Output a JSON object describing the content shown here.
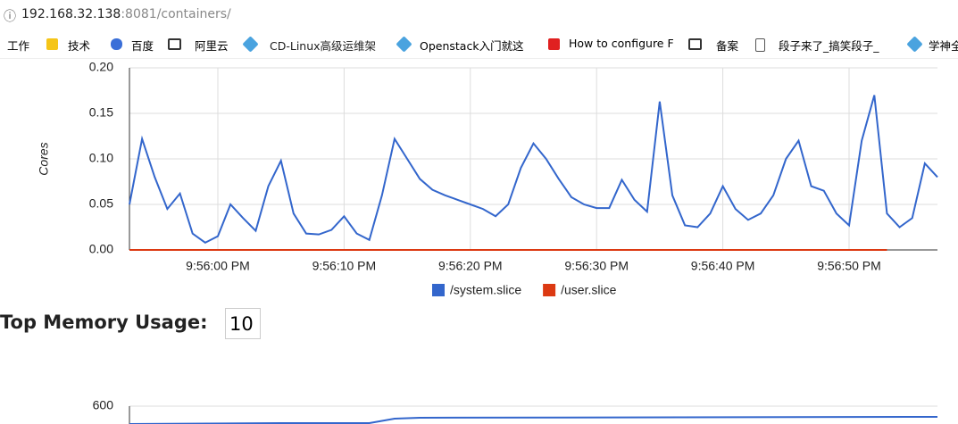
{
  "browser": {
    "url_host": "192.168.32.138",
    "url_rest": ":8081/containers/",
    "bookmarks": [
      "工作",
      "技术",
      "百度",
      "阿里云",
      "CD-Linux高级运维架",
      "Openstack入门就这",
      "How to configure F",
      "备案",
      "段子来了_搞笑段子_",
      "学神全"
    ]
  },
  "chart_data": [
    {
      "type": "line",
      "y_label": "Cores",
      "x": [
        "9:55:53 PM",
        "9:55:54 PM",
        "9:55:55 PM",
        "9:55:56 PM",
        "9:55:57 PM",
        "9:55:58 PM",
        "9:55:59 PM",
        "9:56:00 PM",
        "9:56:01 PM",
        "9:56:02 PM",
        "9:56:03 PM",
        "9:56:04 PM",
        "9:56:05 PM",
        "9:56:06 PM",
        "9:56:07 PM",
        "9:56:08 PM",
        "9:56:09 PM",
        "9:56:10 PM",
        "9:56:11 PM",
        "9:56:12 PM",
        "9:56:13 PM",
        "9:56:14 PM",
        "9:56:15 PM",
        "9:56:16 PM",
        "9:56:17 PM",
        "9:56:18 PM",
        "9:56:19 PM",
        "9:56:20 PM",
        "9:56:21 PM",
        "9:56:22 PM",
        "9:56:23 PM",
        "9:56:24 PM",
        "9:56:25 PM",
        "9:56:26 PM",
        "9:56:27 PM",
        "9:56:28 PM",
        "9:56:29 PM",
        "9:56:30 PM",
        "9:56:31 PM",
        "9:56:32 PM",
        "9:56:33 PM",
        "9:56:34 PM",
        "9:56:35 PM",
        "9:56:36 PM",
        "9:56:37 PM",
        "9:56:38 PM",
        "9:56:39 PM",
        "9:56:40 PM",
        "9:56:41 PM",
        "9:56:42 PM",
        "9:56:43 PM",
        "9:56:44 PM",
        "9:56:45 PM",
        "9:56:46 PM",
        "9:56:47 PM",
        "9:56:48 PM",
        "9:56:49 PM",
        "9:56:50 PM",
        "9:56:51 PM",
        "9:56:52 PM",
        "9:56:53 PM",
        "9:56:54 PM",
        "9:56:55 PM",
        "9:56:56 PM",
        "9:56:57 PM"
      ],
      "series": [
        {
          "name": "/system.slice",
          "color": "#3366cc",
          "values": [
            0.05,
            0.122,
            0.08,
            0.045,
            0.062,
            0.018,
            0.008,
            0.015,
            0.05,
            0.035,
            0.021,
            0.07,
            0.098,
            0.04,
            0.018,
            0.017,
            0.022,
            0.037,
            0.018,
            0.011,
            0.06,
            0.122,
            0.1,
            0.078,
            0.066,
            0.06,
            0.055,
            0.05,
            0.045,
            0.037,
            0.05,
            0.09,
            0.117,
            0.1,
            0.078,
            0.058,
            0.05,
            0.046,
            0.046,
            0.077,
            0.055,
            0.042,
            0.163,
            0.06,
            0.027,
            0.025,
            0.04,
            0.07,
            0.045,
            0.033,
            0.04,
            0.06,
            0.1,
            0.12,
            0.07,
            0.065,
            0.04,
            0.027,
            0.12,
            0.17,
            0.04,
            0.025,
            0.035,
            0.095,
            0.08
          ]
        },
        {
          "name": "/user.slice",
          "color": "#dc3912",
          "values": [
            0,
            0,
            0,
            0,
            0,
            0,
            0,
            0,
            0,
            0,
            0,
            0,
            0,
            0,
            0,
            0,
            0,
            0,
            0,
            0,
            0,
            0,
            0,
            0,
            0,
            0,
            0,
            0,
            0,
            0,
            0,
            0,
            0,
            0,
            0,
            0,
            0,
            0,
            0,
            0,
            0,
            0,
            0,
            0,
            0,
            0,
            0,
            0,
            0,
            0,
            0,
            0,
            0,
            0,
            0,
            0,
            0,
            0,
            0,
            0,
            0,
            null,
            null,
            null,
            null
          ]
        }
      ],
      "xlim": [
        "9:55:53 PM",
        "9:56:57 PM"
      ],
      "xticks": [
        "9:56:00 PM",
        "9:56:10 PM",
        "9:56:20 PM",
        "9:56:30 PM",
        "9:56:40 PM",
        "9:56:50 PM"
      ],
      "ylim": [
        0,
        0.2
      ],
      "yticks": [
        {
          "value": 0,
          "label": "0.00"
        },
        0.05,
        {
          "value": 0.1,
          "label": "0.10"
        },
        0.15,
        {
          "value": 0.2,
          "label": "0.20"
        }
      ],
      "grid": true,
      "legend": "bottom"
    },
    {
      "type": "line",
      "x": [
        "9:55:53 PM",
        "9:56:05 PM",
        "9:56:12 PM",
        "9:56:14 PM",
        "9:56:16 PM",
        "9:56:57 PM"
      ],
      "series": [
        {
          "color": "#3366cc",
          "values": [
            580,
            581,
            581,
            586,
            587,
            588
          ]
        }
      ],
      "xlim": [
        "9:55:53 PM",
        "9:56:57 PM"
      ],
      "ylim": [
        400,
        600
      ],
      "yticks": [
        600
      ],
      "grid": true
    }
  ],
  "memory": {
    "label": "Top Memory Usage:",
    "input": "10"
  }
}
